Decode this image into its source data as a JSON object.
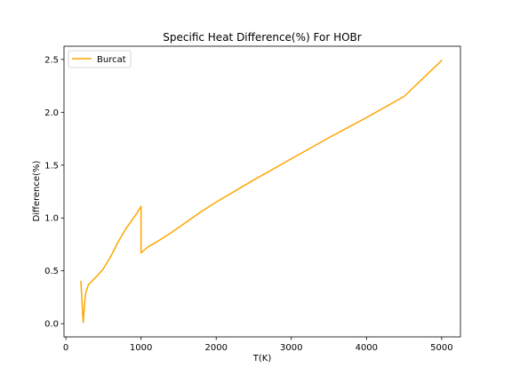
{
  "chart_data": {
    "type": "line",
    "title": "Specific Heat Difference(%) For HOBr",
    "xlabel": "T(K)",
    "ylabel": "Difference(%)",
    "xlim": [
      -25,
      5250
    ],
    "ylim": [
      -0.125,
      2.625
    ],
    "xticks": [
      0,
      1000,
      2000,
      3000,
      4000,
      5000
    ],
    "yticks": [
      0.0,
      0.5,
      1.0,
      1.5,
      2.0,
      2.5
    ],
    "xtick_labels": [
      "0",
      "1000",
      "2000",
      "3000",
      "4000",
      "5000"
    ],
    "ytick_labels": [
      "0.0",
      "0.5",
      "1.0",
      "1.5",
      "2.0",
      "2.5"
    ],
    "grid": false,
    "legend_position": "top-left",
    "series": [
      {
        "name": "Burcat",
        "color": "#ffa500",
        "x": [
          200,
          230,
          260,
          300,
          400,
          500,
          600,
          700,
          800,
          900,
          950,
          1000,
          1000,
          1100,
          1200,
          1400,
          1600,
          1800,
          2000,
          2500,
          3000,
          3500,
          4000,
          4500,
          5000
        ],
        "y": [
          0.4,
          0.01,
          0.28,
          0.37,
          0.44,
          0.52,
          0.64,
          0.78,
          0.9,
          1.0,
          1.05,
          1.11,
          0.67,
          0.73,
          0.77,
          0.86,
          0.96,
          1.06,
          1.15,
          1.36,
          1.56,
          1.76,
          1.95,
          2.15,
          2.49
        ]
      }
    ]
  }
}
